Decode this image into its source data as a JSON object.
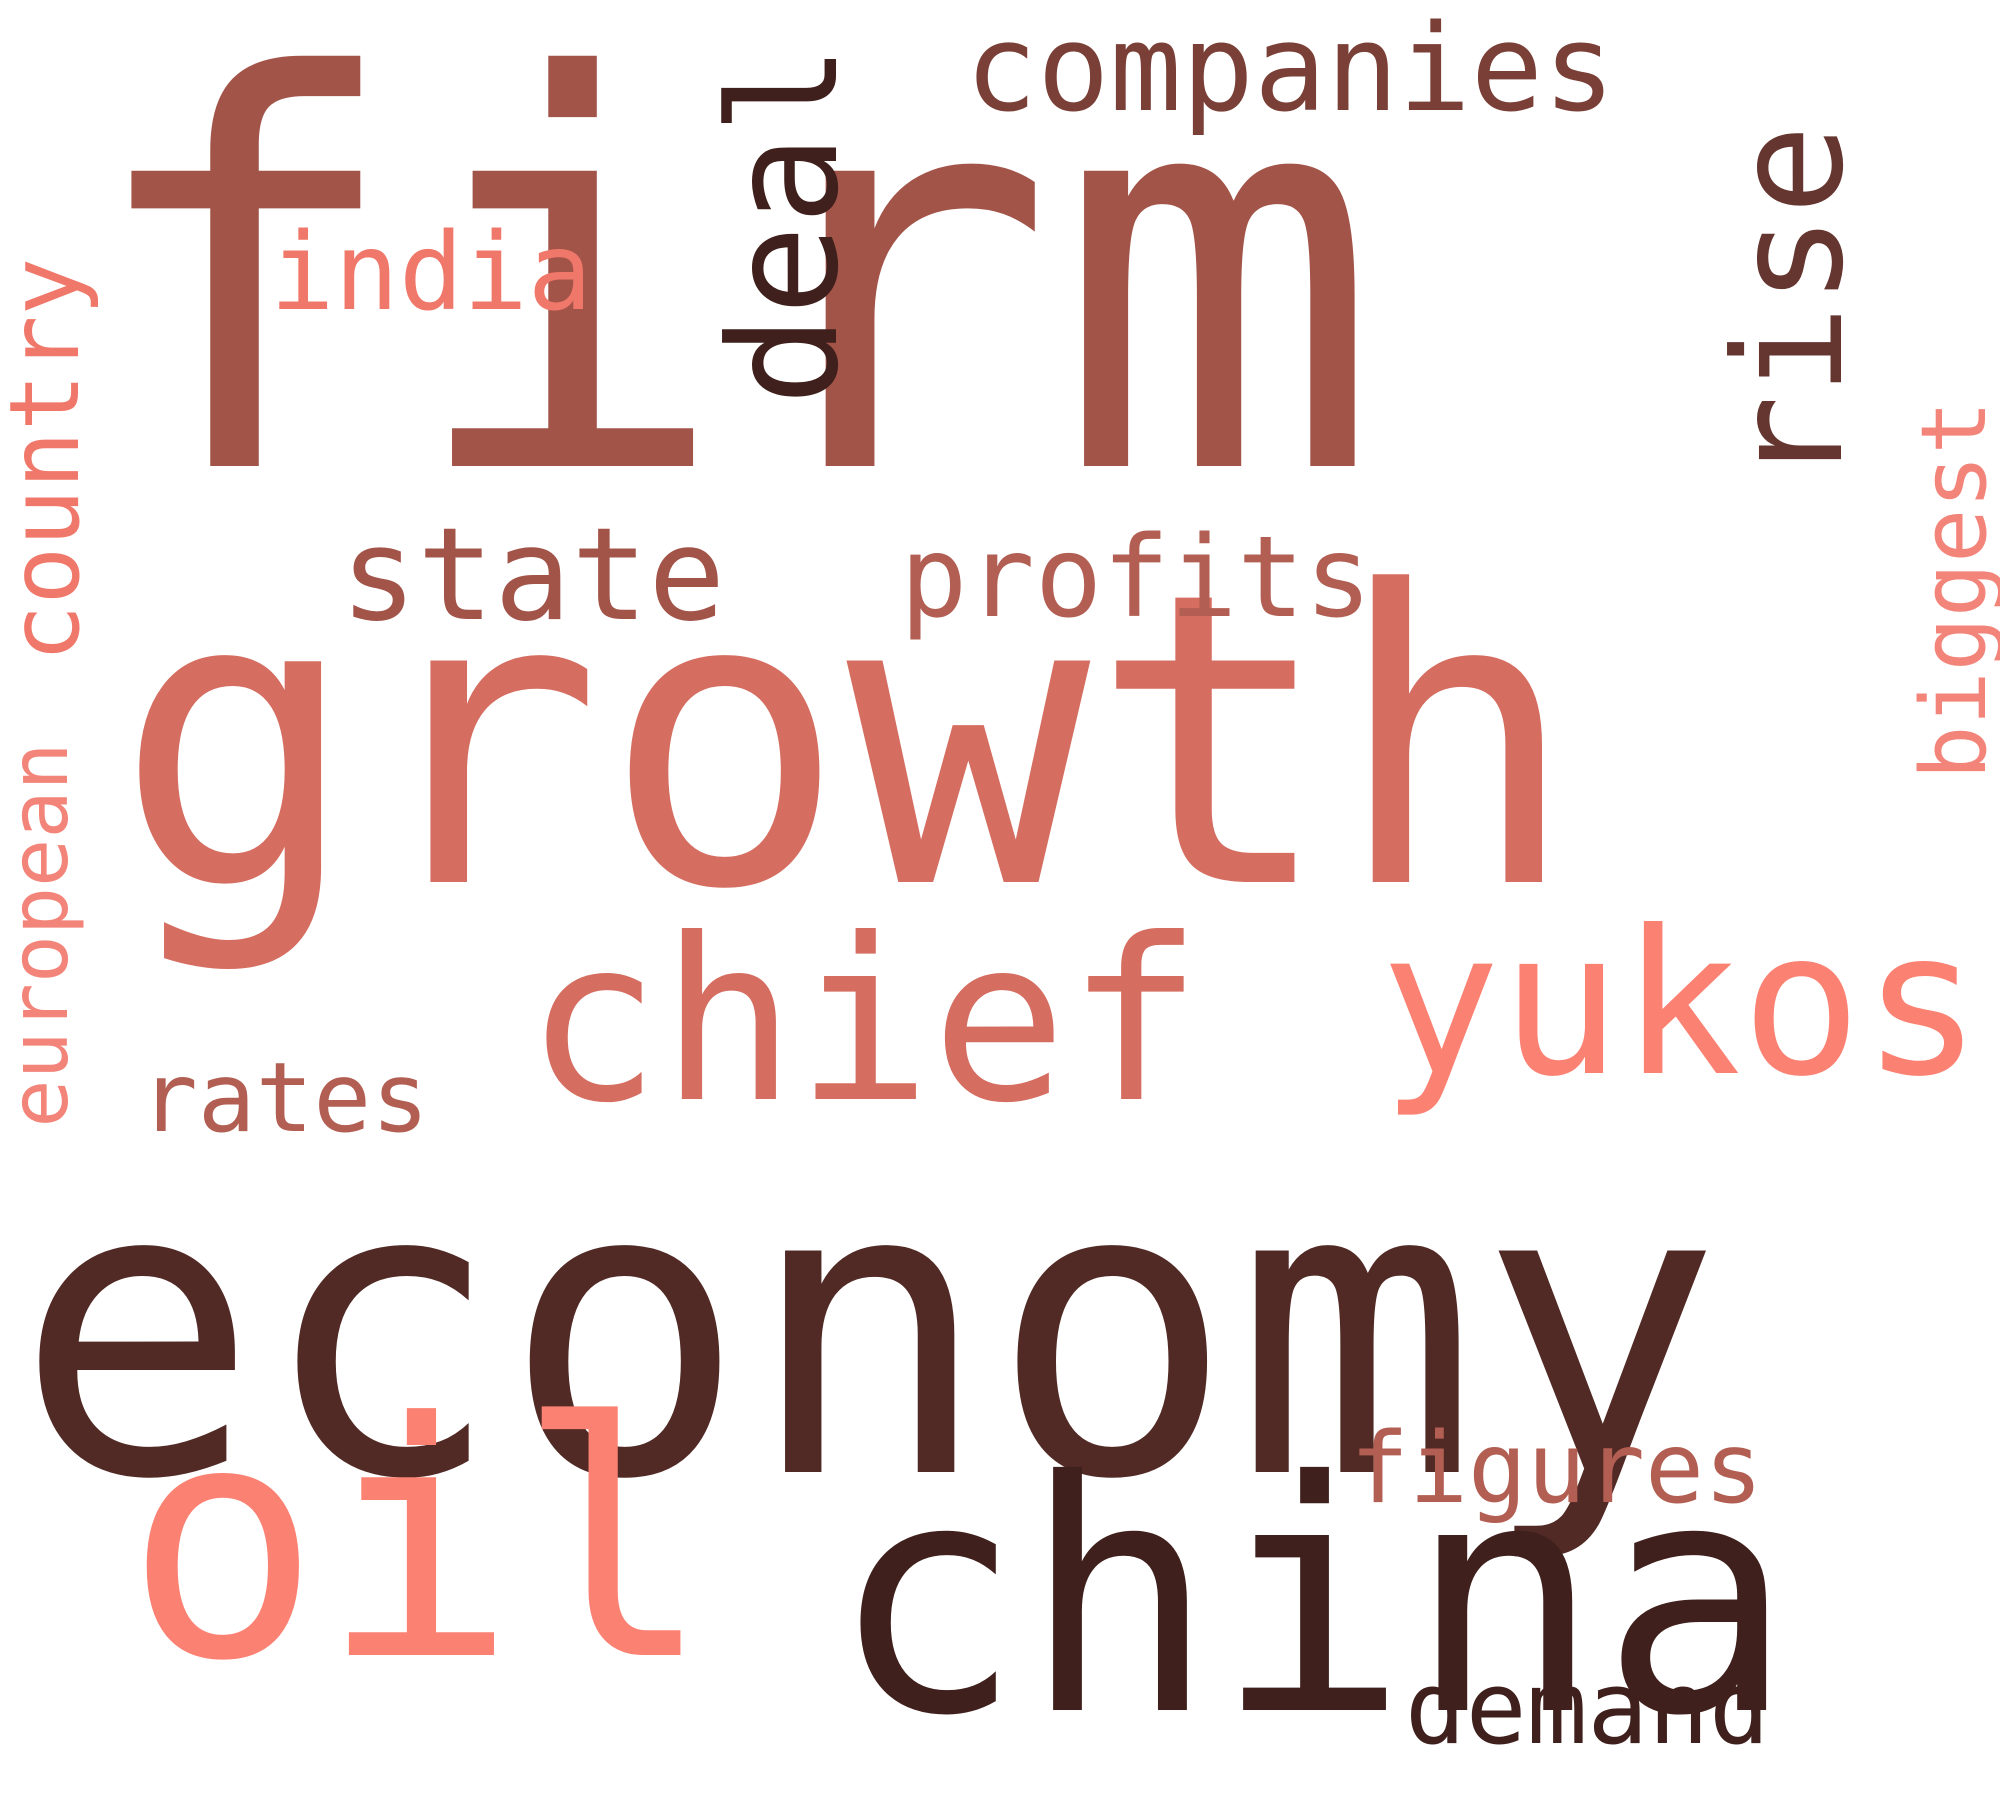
{
  "cloud": {
    "background": "#ffffff",
    "palette": [
      "#a35449",
      "#d56d60",
      "#fb8172",
      "#512a25",
      "#3f201c",
      "#f38479"
    ],
    "words": [
      {
        "id": "firm",
        "text": "firm",
        "color": "#a35449",
        "orientation": "horizontal"
      },
      {
        "id": "growth",
        "text": "growth",
        "color": "#d56d60",
        "orientation": "horizontal"
      },
      {
        "id": "economy",
        "text": "economy",
        "color": "#512a25",
        "orientation": "horizontal"
      },
      {
        "id": "oil",
        "text": "oil",
        "color": "#fb8172",
        "orientation": "horizontal"
      },
      {
        "id": "china",
        "text": "china",
        "color": "#3f201c",
        "orientation": "horizontal"
      },
      {
        "id": "chief",
        "text": "chief",
        "color": "#d56d60",
        "orientation": "horizontal"
      },
      {
        "id": "yukos",
        "text": "yukos",
        "color": "#fb8172",
        "orientation": "horizontal"
      },
      {
        "id": "deal",
        "text": "deal",
        "color": "#3f201c",
        "orientation": "vertical"
      },
      {
        "id": "rise",
        "text": "rise",
        "color": "#653530",
        "orientation": "vertical"
      },
      {
        "id": "companies",
        "text": "companies",
        "color": "#7a3f36",
        "orientation": "horizontal"
      },
      {
        "id": "state",
        "text": "state",
        "color": "#a35449",
        "orientation": "horizontal"
      },
      {
        "id": "profits",
        "text": "profits",
        "color": "#b25e52",
        "orientation": "horizontal"
      },
      {
        "id": "india",
        "text": "india",
        "color": "#f0786a",
        "orientation": "horizontal"
      },
      {
        "id": "country",
        "text": "country",
        "color": "#f0786a",
        "orientation": "vertical"
      },
      {
        "id": "european",
        "text": "european",
        "color": "#f38479",
        "orientation": "vertical"
      },
      {
        "id": "rates",
        "text": "rates",
        "color": "#b25e52",
        "orientation": "horizontal"
      },
      {
        "id": "figures",
        "text": "figures",
        "color": "#b25e52",
        "orientation": "horizontal"
      },
      {
        "id": "demand",
        "text": "demand",
        "color": "#3f201c",
        "orientation": "horizontal"
      },
      {
        "id": "biggest",
        "text": "biggest",
        "color": "#f38479",
        "orientation": "vertical"
      }
    ]
  }
}
